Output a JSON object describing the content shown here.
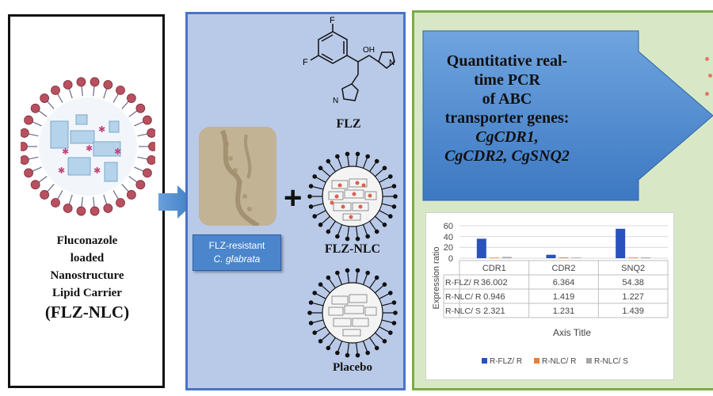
{
  "left_panel": {
    "lines": [
      "Fluconazole",
      "loaded",
      "Nanostructure",
      "Lipid  Carrier"
    ],
    "abbrev": "(FLZ-NLC)"
  },
  "middle_panel": {
    "strain_line1": "FLZ-resistant",
    "strain_line2": "C. glabrata",
    "plus": "+",
    "drug_label": "FLZ",
    "nlc_label": "FLZ-NLC",
    "placebo_label": "Placebo",
    "molecule_atoms": {
      "f_top": "F",
      "f_left": "F",
      "oh": "OH",
      "n": "N"
    }
  },
  "right_panel": {
    "pcr_line1": "Quantitative real-",
    "pcr_line2": "time PCR",
    "pcr_line3": "of ABC",
    "pcr_line4": "transporter genes:",
    "gene1": "CgCDR1,",
    "gene2": "CgCDR2, CgSNQ2"
  },
  "chart_data": {
    "type": "bar",
    "categories": [
      "CDR1",
      "CDR2",
      "SNQ2"
    ],
    "series": [
      {
        "name": "R-FLZ/ R",
        "values": [
          36.002,
          6.364,
          54.38
        ],
        "color": "#2a52be"
      },
      {
        "name": "R-NLC/ R",
        "values": [
          0.946,
          1.419,
          1.227
        ],
        "color": "#ed7d31"
      },
      {
        "name": "R-NLC/ S",
        "values": [
          2.321,
          1.231,
          1.439
        ],
        "color": "#a5a5a5"
      }
    ],
    "ylabel": "Expression ratio",
    "xlabel": "Axis Title",
    "ylim": [
      0,
      60
    ],
    "yticks": [
      "60",
      "40",
      "20",
      "0"
    ],
    "table_values": [
      [
        "36.002",
        "6.364",
        "54.38"
      ],
      [
        "0.946",
        "1.419",
        "1.227"
      ],
      [
        "2.321",
        "1.231",
        "1.439"
      ]
    ],
    "legend_position": "bottom"
  }
}
